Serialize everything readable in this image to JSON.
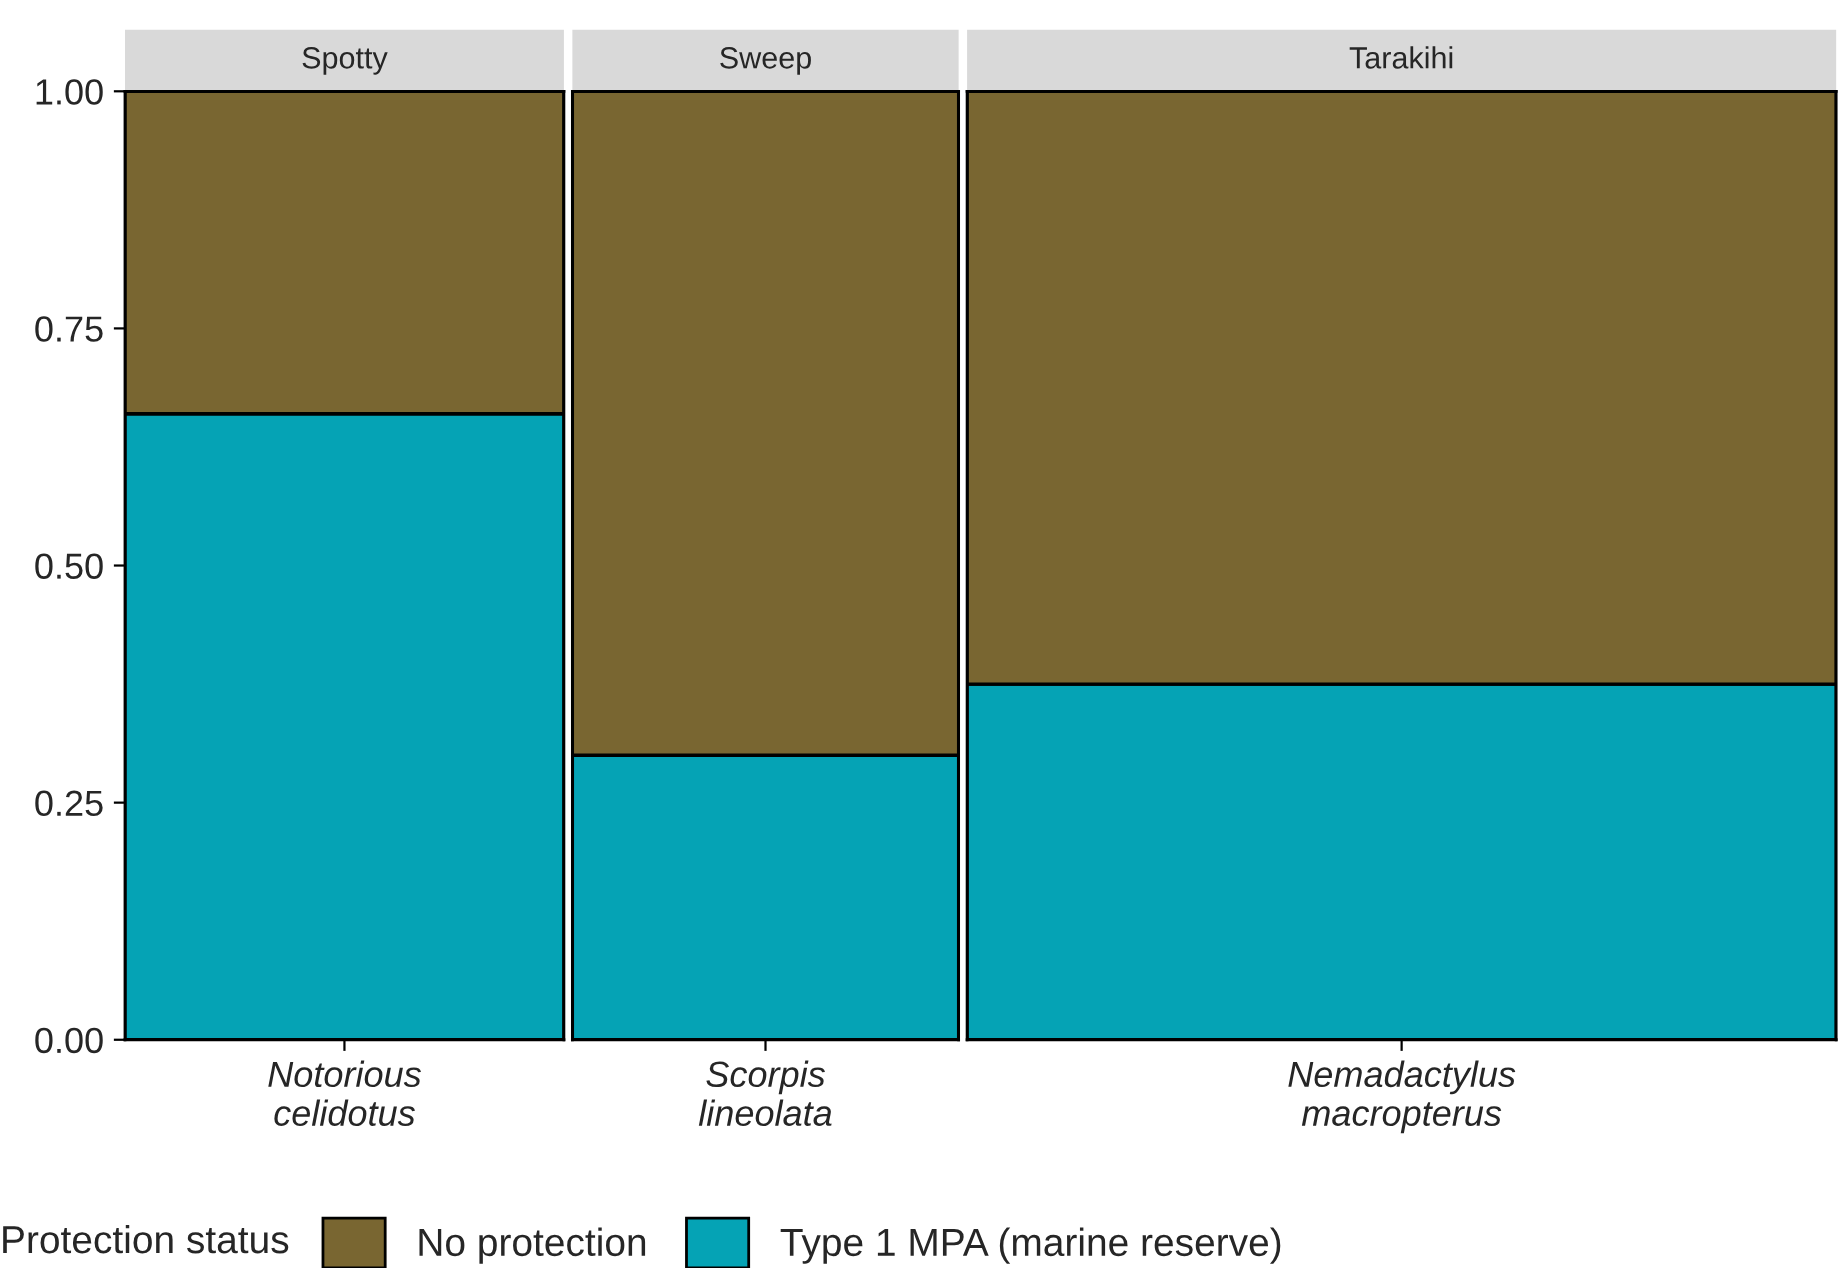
{
  "chart_data": [
    {
      "type": "bar",
      "title": "Spotty",
      "categories": [
        "Notorious\ncelidotus"
      ],
      "stacked": true,
      "ylim": [
        0,
        1
      ],
      "yticks": [
        {
          "value": 0,
          "label": "0.00"
        },
        {
          "value": 0.25,
          "label": "0.25"
        },
        {
          "value": 0.5,
          "label": "0.50"
        },
        {
          "value": 0.75,
          "label": "0.75"
        },
        {
          "value": 1,
          "label": "1.00"
        }
      ],
      "legend": "bottom",
      "legend_title": "Protection status",
      "series": [
        {
          "name": "Type 1 MPA (marine reserve)",
          "color": "#05a3b5",
          "values": [
            0.66
          ]
        },
        {
          "name": "No protection",
          "color": "#796631",
          "values": [
            0.34
          ]
        }
      ]
    },
    {
      "type": "bar",
      "title": "Sweep",
      "categories": [
        "Scorpis\nlineolata"
      ],
      "stacked": true,
      "ylim": [
        0,
        1
      ],
      "tick_labels": "x",
      "series": [
        {
          "color": "#05a3b5",
          "values": [
            0.3
          ]
        },
        {
          "color": "#796631",
          "values": [
            0.7
          ]
        }
      ]
    },
    {
      "type": "bar",
      "title": "Tarakihi",
      "categories": [
        "Nemadactylus\nmacropterus"
      ],
      "stacked": true,
      "ylim": [
        0,
        1
      ],
      "tick_labels": "x",
      "series": [
        {
          "color": "#05a3b5",
          "values": [
            0.375
          ]
        },
        {
          "color": "#796631",
          "values": [
            0.625
          ]
        }
      ]
    }
  ]
}
